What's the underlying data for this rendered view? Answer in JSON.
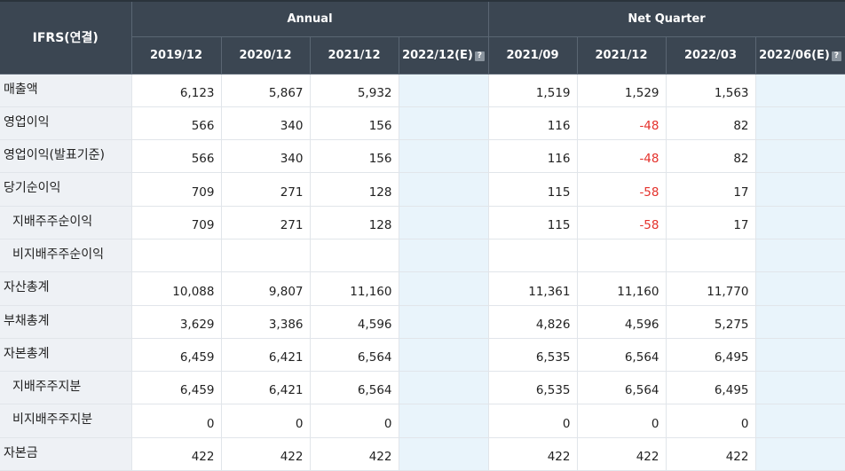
{
  "header": {
    "corner": "IFRS(연결)",
    "annual_label": "Annual",
    "quarter_label": "Net Quarter",
    "est_icon": "?",
    "annual_periods": [
      "2019/12",
      "2020/12",
      "2021/12",
      "2022/12(E)"
    ],
    "quarter_periods": [
      "2021/09",
      "2021/12",
      "2022/03",
      "2022/06(E)"
    ]
  },
  "rows": [
    {
      "label": "매출액",
      "indent": false,
      "values": [
        "6,123",
        "5,867",
        "5,932",
        "",
        "1,519",
        "1,529",
        "1,563",
        ""
      ]
    },
    {
      "label": "영업이익",
      "indent": false,
      "values": [
        "566",
        "340",
        "156",
        "",
        "116",
        "-48",
        "82",
        ""
      ]
    },
    {
      "label": "영업이익(발표기준)",
      "indent": false,
      "values": [
        "566",
        "340",
        "156",
        "",
        "116",
        "-48",
        "82",
        ""
      ]
    },
    {
      "label": "당기순이익",
      "indent": false,
      "values": [
        "709",
        "271",
        "128",
        "",
        "115",
        "-58",
        "17",
        ""
      ]
    },
    {
      "label": "지배주주순이익",
      "indent": true,
      "values": [
        "709",
        "271",
        "128",
        "",
        "115",
        "-58",
        "17",
        ""
      ]
    },
    {
      "label": "비지배주주순이익",
      "indent": true,
      "values": [
        "",
        "",
        "",
        "",
        "",
        "",
        "",
        ""
      ]
    },
    {
      "label": "자산총계",
      "indent": false,
      "values": [
        "10,088",
        "9,807",
        "11,160",
        "",
        "11,361",
        "11,160",
        "11,770",
        ""
      ]
    },
    {
      "label": "부채총계",
      "indent": false,
      "values": [
        "3,629",
        "3,386",
        "4,596",
        "",
        "4,826",
        "4,596",
        "5,275",
        ""
      ]
    },
    {
      "label": "자본총계",
      "indent": false,
      "values": [
        "6,459",
        "6,421",
        "6,564",
        "",
        "6,535",
        "6,564",
        "6,495",
        ""
      ]
    },
    {
      "label": "지배주주지분",
      "indent": true,
      "values": [
        "6,459",
        "6,421",
        "6,564",
        "",
        "6,535",
        "6,564",
        "6,495",
        ""
      ]
    },
    {
      "label": "비지배주주지분",
      "indent": true,
      "values": [
        "0",
        "0",
        "0",
        "",
        "0",
        "0",
        "0",
        ""
      ]
    },
    {
      "label": "자본금",
      "indent": false,
      "values": [
        "422",
        "422",
        "422",
        "",
        "422",
        "422",
        "422",
        ""
      ]
    }
  ],
  "colors": {
    "header_bg": "#3b4652",
    "label_bg": "#eef1f5",
    "estimate_bg": "#e9f4fb",
    "negative": "#e4312b"
  }
}
